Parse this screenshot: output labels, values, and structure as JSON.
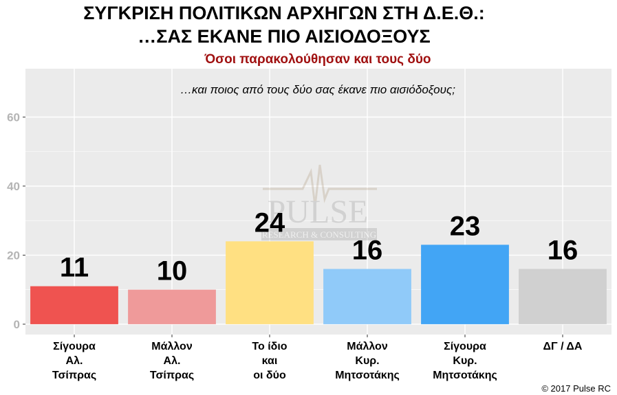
{
  "colors": {
    "panel": "#ebebeb",
    "grid": "#ffffff",
    "tick_text": "#b4b4b4",
    "subtitle": "#a01010"
  },
  "chart_data": {
    "type": "bar",
    "title_lines": [
      "ΣΥΓΚΡΙΣΗ ΠΟΛΙΤΙΚΩΝ ΑΡΧΗΓΩΝ ΣΤΗ Δ.Ε.Θ.:",
      "…ΣΑΣ ΕΚΑΝΕ ΠΙΟ ΑΙΣΙΟΔΟΞΟΥΣ"
    ],
    "subtitle": "Όσοι παρακολούθησαν και τους δύο",
    "annotation": "…και ποιος από τους δύο σας έκανε πιο αισιόδοξους;",
    "categories": [
      [
        "Σίγουρα",
        "Αλ.",
        "Τσίπρας"
      ],
      [
        "Μάλλον",
        "Αλ.",
        "Τσίπρας"
      ],
      [
        "Το ίδιο",
        "και",
        "οι δύο"
      ],
      [
        "Μάλλον",
        "Κυρ.",
        "Μητσοτάκης"
      ],
      [
        "Σίγουρα",
        "Κυρ.",
        "Μητσοτάκης"
      ],
      [
        "ΔΓ / ΔΑ"
      ]
    ],
    "values": [
      11,
      10,
      24,
      16,
      23,
      16
    ],
    "bar_colors": [
      "#ef5350",
      "#ef9a9a",
      "#ffe082",
      "#90caf9",
      "#42a5f5",
      "#d0d0d0"
    ],
    "yticks": [
      0,
      20,
      40,
      60
    ],
    "ylim": [
      -3,
      74
    ],
    "grid": true,
    "legend": "none"
  },
  "copyright": "© 2017 Pulse RC"
}
